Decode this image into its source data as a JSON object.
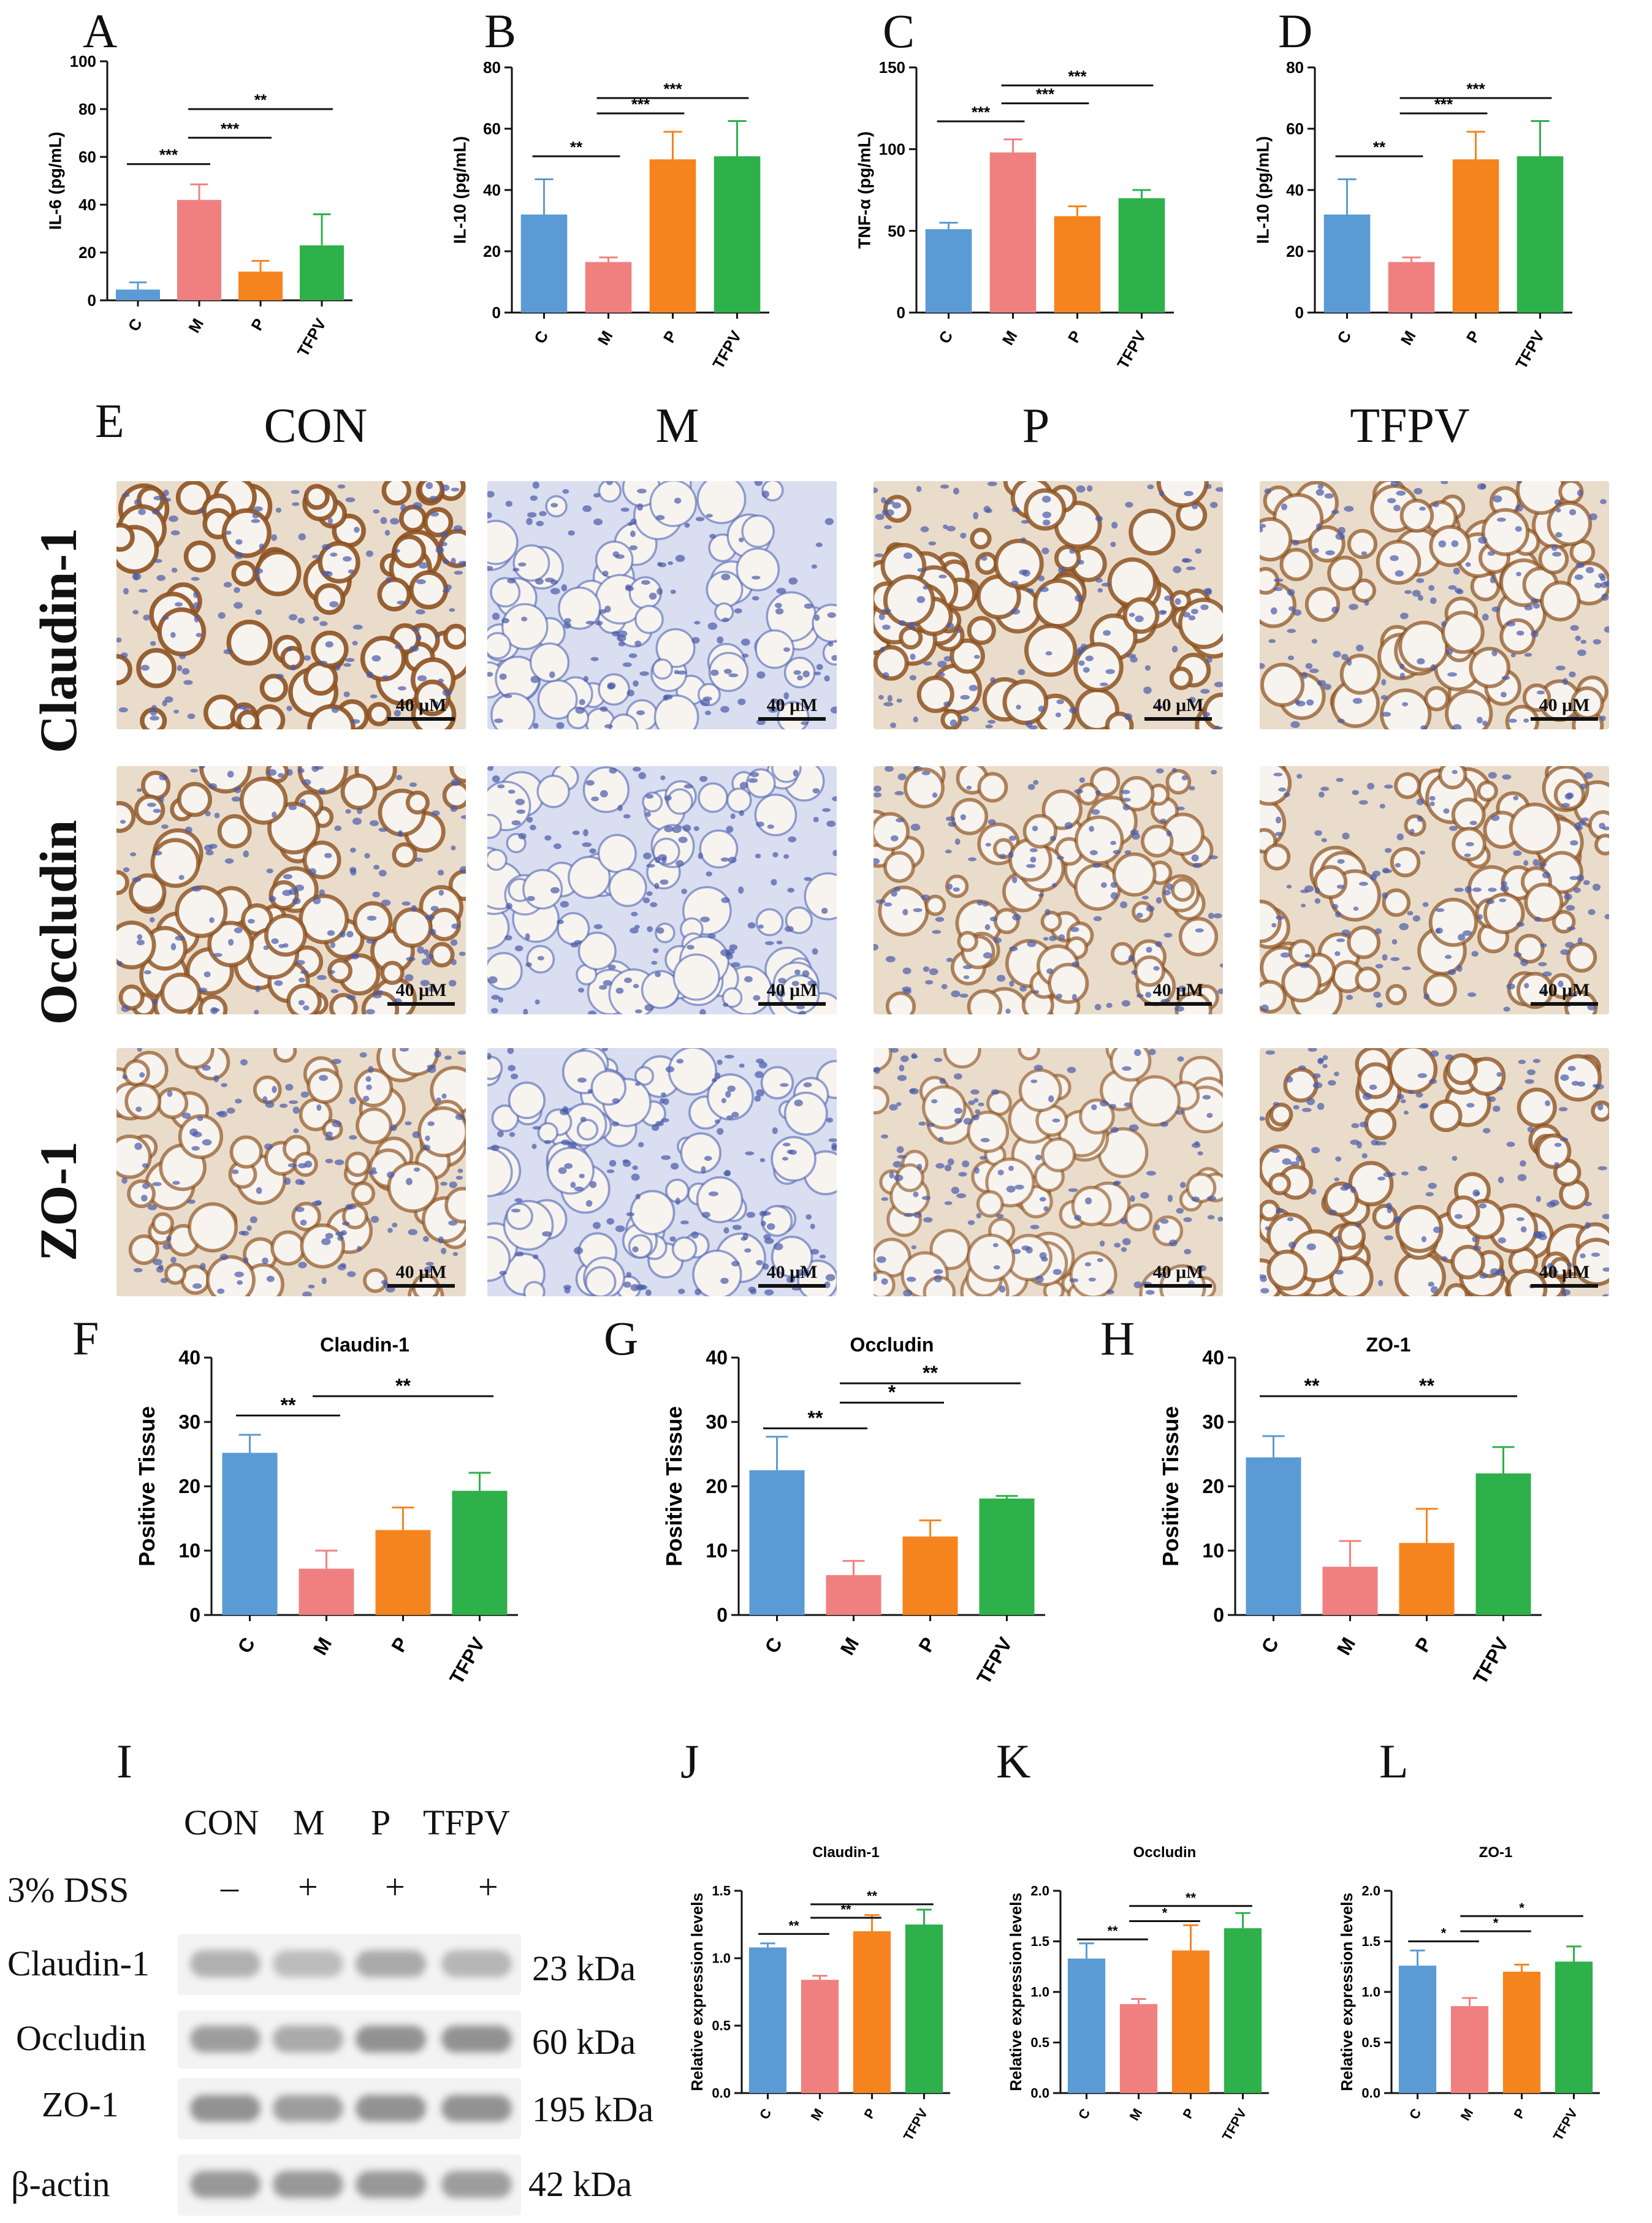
{
  "panel_letters": {
    "A": "A",
    "B": "B",
    "C": "C",
    "D": "D",
    "E": "E",
    "F": "F",
    "G": "G",
    "H": "H",
    "I": "I",
    "J": "J",
    "K": "K",
    "L": "L"
  },
  "colors": {
    "C": "#5b9bd5",
    "M": "#f08080",
    "P": "#f5841f",
    "TFPV": "#2eb04a"
  },
  "ihc": {
    "columns": [
      "CON",
      "M",
      "P",
      "TFPV"
    ],
    "rows": [
      "Claudin-1",
      "Occludin",
      "ZO-1"
    ],
    "scale_label": "40 μM",
    "stain_intensity": [
      [
        0.9,
        0.1,
        0.8,
        0.6
      ],
      [
        0.75,
        0.1,
        0.55,
        0.6
      ],
      [
        0.55,
        0.15,
        0.45,
        0.7
      ]
    ]
  },
  "western": {
    "groups": [
      "CON",
      "M",
      "P",
      "TFPV"
    ],
    "treatment_label": "3% DSS",
    "treatment_marks": [
      "–",
      "+",
      "+",
      "+"
    ],
    "proteins": [
      {
        "name": "Claudin-1",
        "size": "23 kDa"
      },
      {
        "name": "Occludin",
        "size": "60 kDa"
      },
      {
        "name": "ZO-1",
        "size": "195 kDa"
      },
      {
        "name": "β-actin",
        "size": "42 kDa"
      }
    ]
  },
  "chart_data": [
    {
      "id": "A",
      "type": "bar",
      "categories": [
        "C",
        "M",
        "P",
        "TFPV"
      ],
      "values": [
        4.5,
        42,
        12,
        23
      ],
      "errors": [
        3,
        6.5,
        4.5,
        13
      ],
      "ylabel": "IL-6 (pg/mL)",
      "ylim": [
        0,
        100
      ],
      "yticks": [
        0,
        20,
        40,
        60,
        80,
        100
      ],
      "sig": [
        {
          "from": 0,
          "to": 1,
          "label": "***",
          "y": 57
        },
        {
          "from": 1,
          "to": 2,
          "label": "***",
          "y": 68
        },
        {
          "from": 1,
          "to": 3,
          "label": "**",
          "y": 80
        }
      ]
    },
    {
      "id": "B",
      "type": "bar",
      "categories": [
        "C",
        "M",
        "P",
        "TFPV"
      ],
      "values": [
        32,
        16.5,
        50,
        51
      ],
      "errors": [
        11.5,
        1.5,
        9,
        11.5
      ],
      "ylabel": "IL-10 (pg/mL)",
      "ylim": [
        0,
        80
      ],
      "yticks": [
        0,
        20,
        40,
        60,
        80
      ],
      "sig": [
        {
          "from": 0,
          "to": 1,
          "label": "**",
          "y": 51
        },
        {
          "from": 1,
          "to": 2,
          "label": "***",
          "y": 65
        },
        {
          "from": 1,
          "to": 3,
          "label": "***",
          "y": 70
        }
      ]
    },
    {
      "id": "C",
      "type": "bar",
      "categories": [
        "C",
        "M",
        "P",
        "TFPV"
      ],
      "values": [
        51,
        98,
        59,
        70
      ],
      "errors": [
        4,
        8,
        6,
        5
      ],
      "ylabel": "TNF-α (pg/mL)",
      "ylim": [
        0,
        150
      ],
      "yticks": [
        0,
        50,
        100,
        150
      ],
      "sig": [
        {
          "from": 0,
          "to": 1,
          "label": "***",
          "y": 117
        },
        {
          "from": 1,
          "to": 2,
          "label": "***",
          "y": 128
        },
        {
          "from": 1,
          "to": 3,
          "label": "***",
          "y": 139
        }
      ]
    },
    {
      "id": "D",
      "type": "bar",
      "categories": [
        "C",
        "M",
        "P",
        "TFPV"
      ],
      "values": [
        32,
        16.5,
        50,
        51
      ],
      "errors": [
        11.5,
        1.5,
        9,
        11.5
      ],
      "ylabel": "IL-10 (pg/mL)",
      "ylim": [
        0,
        80
      ],
      "yticks": [
        0,
        20,
        40,
        60,
        80
      ],
      "sig": [
        {
          "from": 0,
          "to": 1,
          "label": "**",
          "y": 51
        },
        {
          "from": 1,
          "to": 2,
          "label": "***",
          "y": 65
        },
        {
          "from": 1,
          "to": 3,
          "label": "***",
          "y": 70
        }
      ]
    },
    {
      "id": "F",
      "type": "bar",
      "title": "Claudin-1",
      "categories": [
        "C",
        "M",
        "P",
        "TFPV"
      ],
      "values": [
        25.2,
        7.2,
        13.2,
        19.3
      ],
      "errors": [
        2.8,
        2.8,
        3.5,
        2.8
      ],
      "ylabel": "Positive Tissue",
      "ylim": [
        0,
        40
      ],
      "yticks": [
        0,
        10,
        20,
        30,
        40
      ],
      "sig": [
        {
          "from": 0,
          "to": 1,
          "label": "**",
          "y": 31
        },
        {
          "from": 1,
          "to": 3,
          "label": "**",
          "y": 34
        }
      ]
    },
    {
      "id": "G",
      "type": "bar",
      "title": "Occludin",
      "categories": [
        "C",
        "M",
        "P",
        "TFPV"
      ],
      "values": [
        22.5,
        6.2,
        12.2,
        18.1
      ],
      "errors": [
        5.2,
        2.2,
        2.5,
        0.4
      ],
      "ylabel": "Positive Tissue",
      "ylim": [
        0,
        40
      ],
      "yticks": [
        0,
        10,
        20,
        30,
        40
      ],
      "sig": [
        {
          "from": 0,
          "to": 1,
          "label": "**",
          "y": 29
        },
        {
          "from": 1,
          "to": 2,
          "label": "*",
          "y": 33
        },
        {
          "from": 1,
          "to": 3,
          "label": "**",
          "y": 36
        }
      ]
    },
    {
      "id": "H",
      "type": "bar",
      "title": "ZO-1",
      "categories": [
        "C",
        "M",
        "P",
        "TFPV"
      ],
      "values": [
        24.5,
        7.5,
        11.2,
        22
      ],
      "errors": [
        3.3,
        4,
        5.3,
        4.1
      ],
      "ylabel": "Positive Tissue",
      "ylim": [
        0,
        40
      ],
      "yticks": [
        0,
        10,
        20,
        30,
        40
      ],
      "sig": [
        {
          "from": 0,
          "to": 1,
          "label": "**",
          "y": 34
        },
        {
          "from": 1,
          "to": 3,
          "label": "**",
          "y": 34
        }
      ]
    },
    {
      "id": "J",
      "type": "bar",
      "title": "Claudin-1",
      "categories": [
        "C",
        "M",
        "P",
        "TFPV"
      ],
      "values": [
        1.08,
        0.84,
        1.2,
        1.25
      ],
      "errors": [
        0.03,
        0.03,
        0.12,
        0.11
      ],
      "ylabel": "Relative expression levels",
      "ylim": [
        0,
        1.5
      ],
      "yticks": [
        0.0,
        0.5,
        1.0,
        1.5
      ],
      "sig": [
        {
          "from": 0,
          "to": 1,
          "label": "**",
          "y": 1.18
        },
        {
          "from": 1,
          "to": 2,
          "label": "**",
          "y": 1.3
        },
        {
          "from": 1,
          "to": 3,
          "label": "**",
          "y": 1.4
        }
      ]
    },
    {
      "id": "K",
      "type": "bar",
      "title": "Occludin",
      "categories": [
        "C",
        "M",
        "P",
        "TFPV"
      ],
      "values": [
        1.33,
        0.88,
        1.41,
        1.63
      ],
      "errors": [
        0.15,
        0.05,
        0.25,
        0.15
      ],
      "ylabel": "Relative expression levels",
      "ylim": [
        0,
        2.0
      ],
      "yticks": [
        0.0,
        0.5,
        1.0,
        1.5,
        2.0
      ],
      "sig": [
        {
          "from": 0,
          "to": 1,
          "label": "**",
          "y": 1.52
        },
        {
          "from": 1,
          "to": 2,
          "label": "*",
          "y": 1.7
        },
        {
          "from": 1,
          "to": 3,
          "label": "**",
          "y": 1.85
        }
      ]
    },
    {
      "id": "L",
      "type": "bar",
      "title": "ZO-1",
      "categories": [
        "C",
        "M",
        "P",
        "TFPV"
      ],
      "values": [
        1.26,
        0.86,
        1.2,
        1.3
      ],
      "errors": [
        0.15,
        0.08,
        0.07,
        0.15
      ],
      "ylabel": "Relative expression levels",
      "ylim": [
        0,
        2.0
      ],
      "yticks": [
        0.0,
        0.5,
        1.0,
        1.5,
        2.0
      ],
      "sig": [
        {
          "from": 0,
          "to": 1,
          "label": "*",
          "y": 1.5
        },
        {
          "from": 1,
          "to": 2,
          "label": "*",
          "y": 1.6
        },
        {
          "from": 1,
          "to": 3,
          "label": "*",
          "y": 1.75
        }
      ]
    }
  ]
}
